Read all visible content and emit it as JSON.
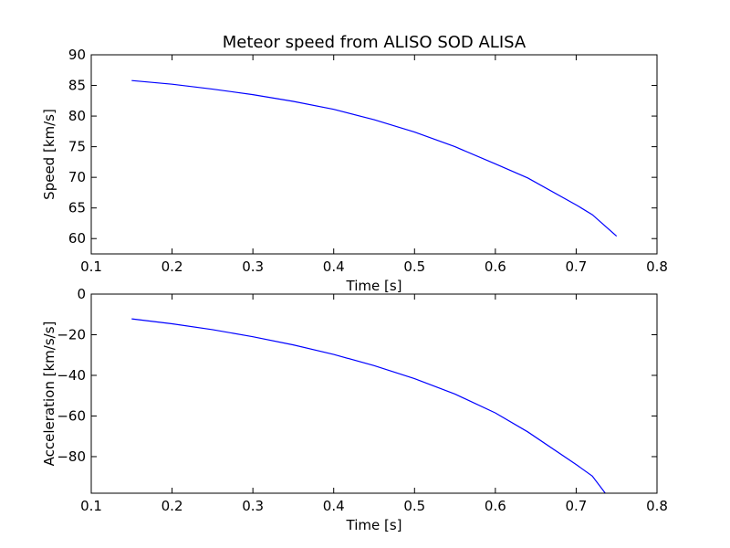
{
  "chart_data": [
    {
      "type": "line",
      "title": "Meteor speed from  ALISO SOD ALISA",
      "xlabel": "Time [s]",
      "ylabel": "Speed [km/s]",
      "xlim": [
        0.1,
        0.8
      ],
      "ylim": [
        57.5,
        90
      ],
      "xticks": [
        0.1,
        0.2,
        0.3,
        0.4,
        0.5,
        0.6,
        0.7,
        0.8
      ],
      "xtick_labels": [
        "0.1",
        "0.2",
        "0.3",
        "0.4",
        "0.5",
        "0.6",
        "0.7",
        "0.8"
      ],
      "yticks": [
        60,
        65,
        70,
        75,
        80,
        85,
        90
      ],
      "ytick_labels": [
        "60",
        "65",
        "70",
        "75",
        "80",
        "85",
        "90"
      ],
      "grid": false,
      "series": [
        {
          "color": "#0000ff",
          "x": [
            0.15,
            0.2,
            0.25,
            0.3,
            0.35,
            0.4,
            0.45,
            0.5,
            0.55,
            0.6,
            0.64,
            0.7,
            0.72,
            0.75
          ],
          "y": [
            85.8,
            85.2,
            84.4,
            83.5,
            82.4,
            81.1,
            79.4,
            77.4,
            75.0,
            72.2,
            69.9,
            65.5,
            63.9,
            60.4
          ]
        }
      ]
    },
    {
      "type": "line",
      "title": "",
      "xlabel": "Time [s]",
      "ylabel": "Acceleration [km/s/s]",
      "xlim": [
        0.1,
        0.8
      ],
      "ylim": [
        -98,
        0
      ],
      "xticks": [
        0.1,
        0.2,
        0.3,
        0.4,
        0.5,
        0.6,
        0.7,
        0.8
      ],
      "xtick_labels": [
        "0.1",
        "0.2",
        "0.3",
        "0.4",
        "0.5",
        "0.6",
        "0.7",
        "0.8"
      ],
      "yticks": [
        -80,
        -60,
        -40,
        -20,
        0
      ],
      "ytick_labels": [
        "−80",
        "−60",
        "−40",
        "−20",
        "0"
      ],
      "grid": false,
      "series": [
        {
          "color": "#0000ff",
          "x": [
            0.15,
            0.2,
            0.25,
            0.3,
            0.35,
            0.4,
            0.45,
            0.5,
            0.55,
            0.6,
            0.64,
            0.7,
            0.72,
            0.736
          ],
          "y": [
            -12.2,
            -14.6,
            -17.5,
            -21.0,
            -25.0,
            -29.7,
            -35.2,
            -41.6,
            -49.2,
            -58.5,
            -67.8,
            -83.9,
            -89.6,
            -98.0
          ]
        }
      ]
    }
  ]
}
